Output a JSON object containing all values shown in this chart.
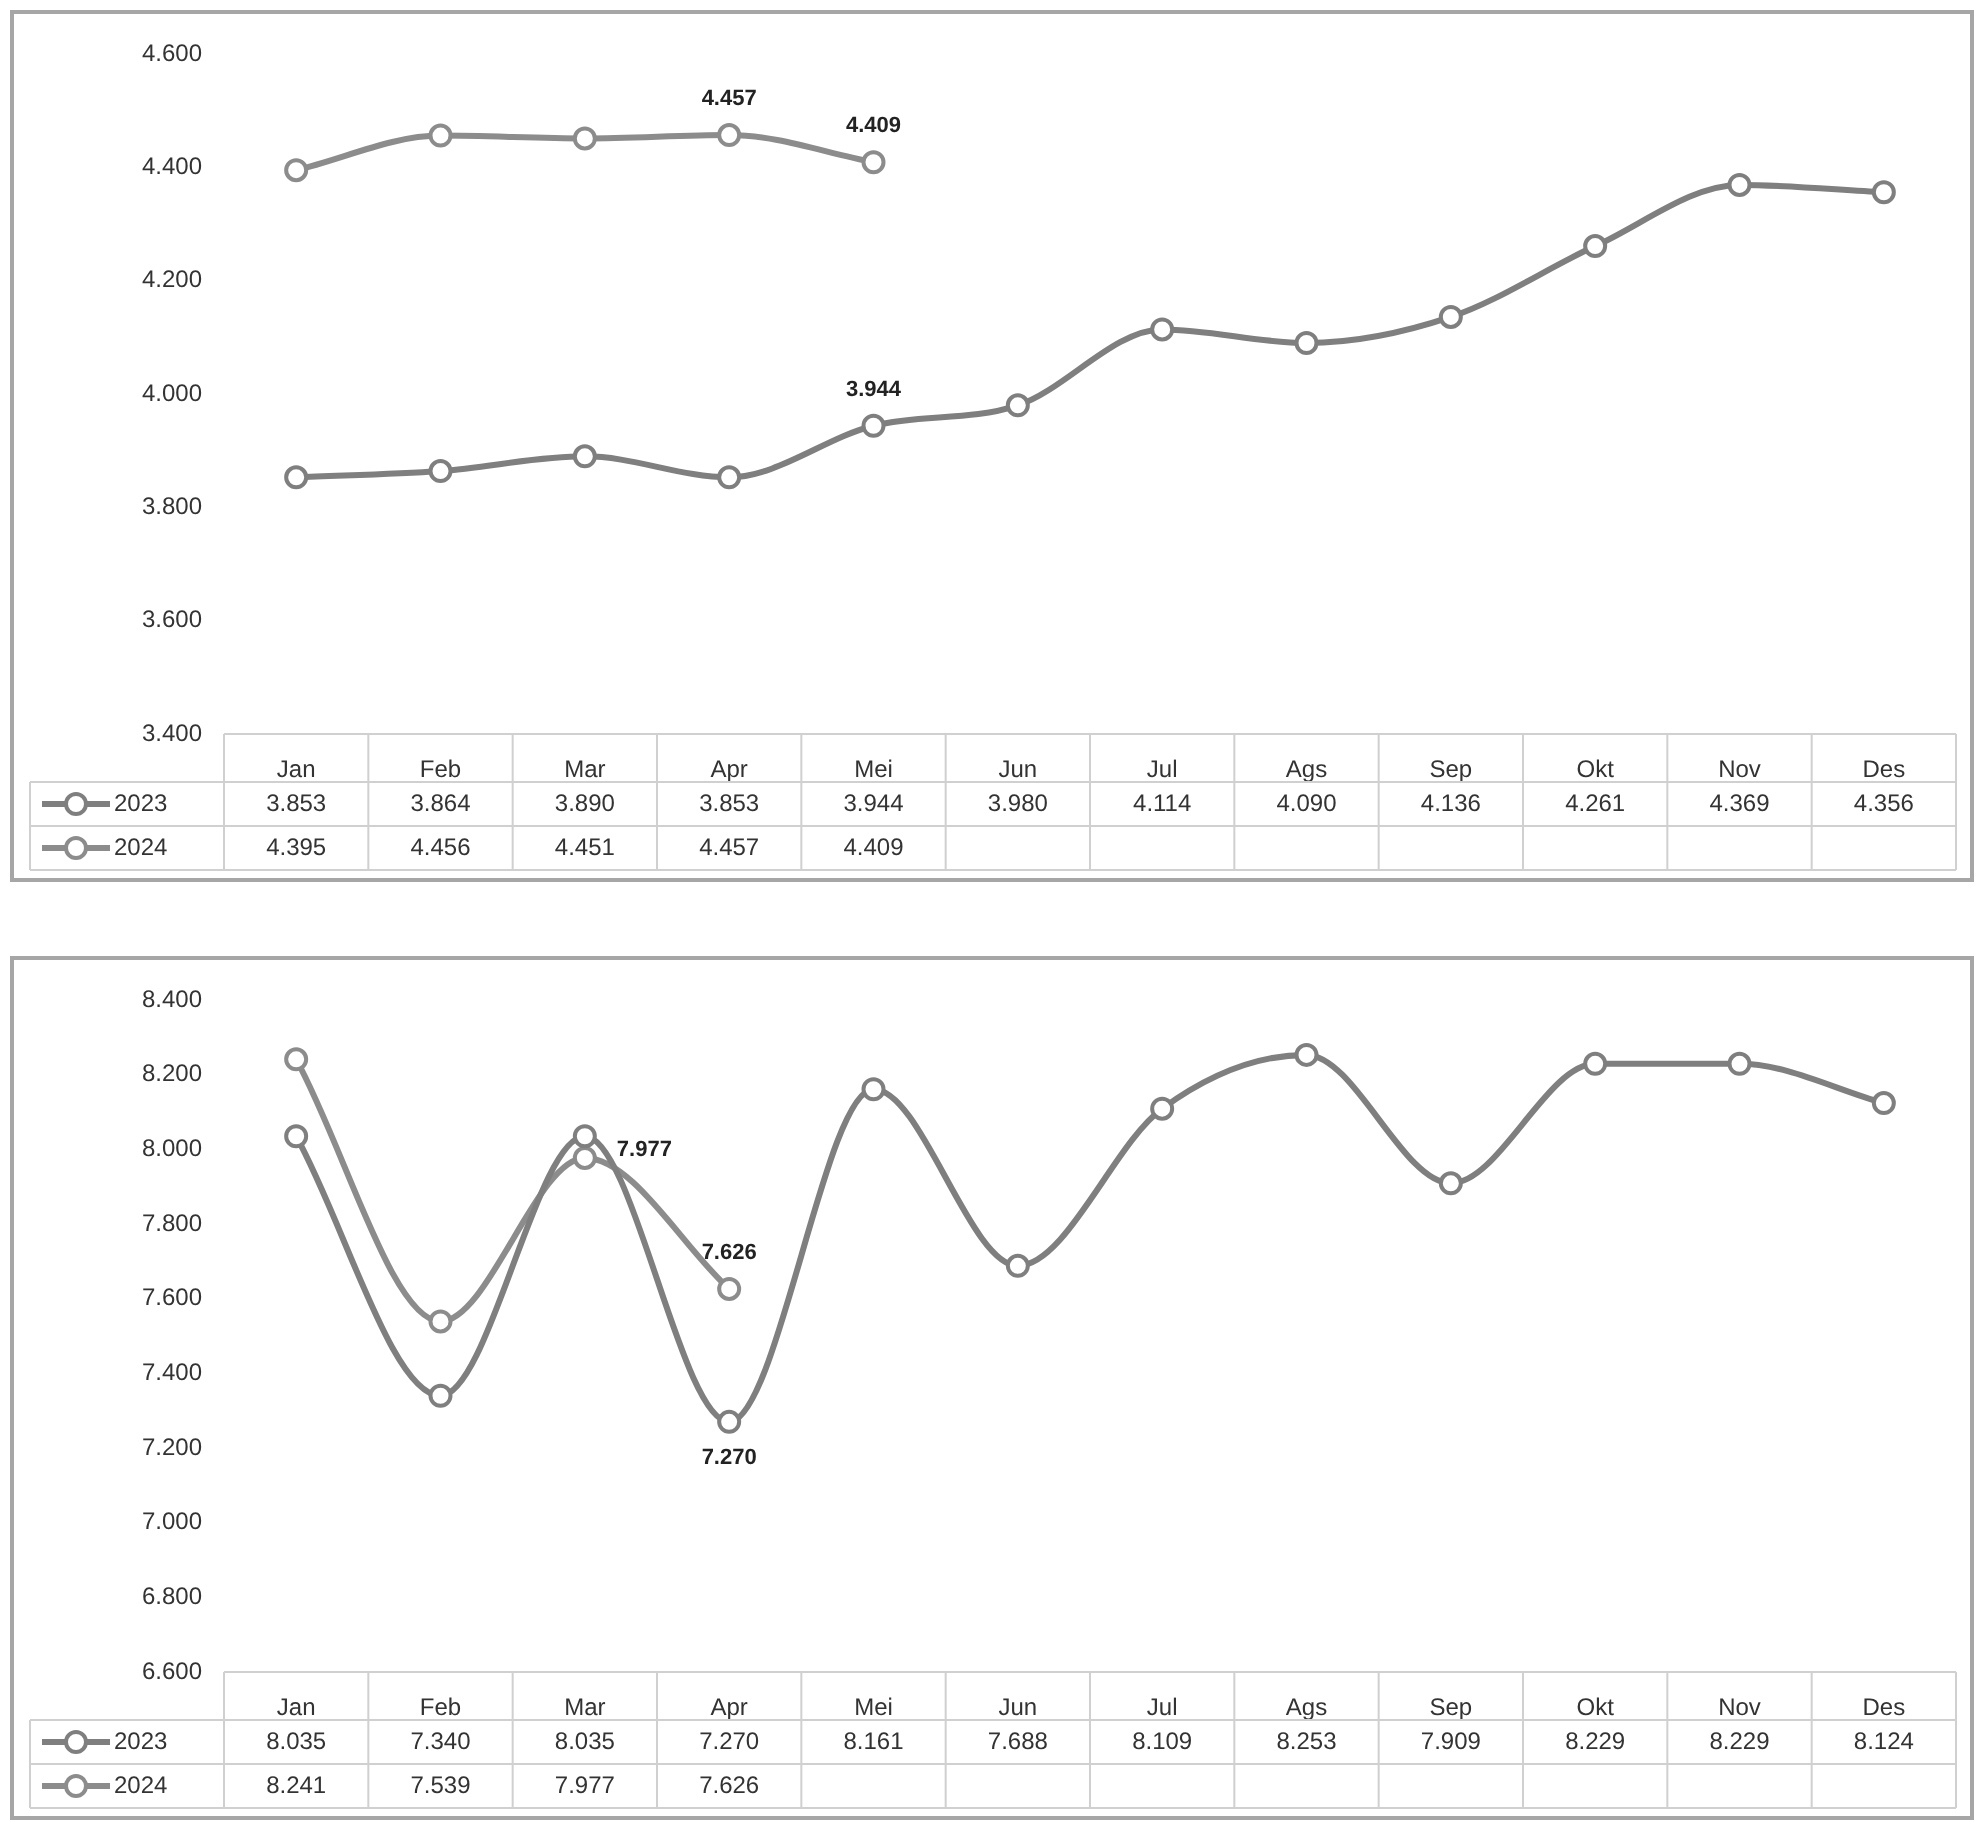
{
  "chart_data": [
    {
      "type": "line",
      "categories": [
        "Jan",
        "Feb",
        "Mar",
        "Apr",
        "Mei",
        "Jun",
        "Jul",
        "Ags",
        "Sep",
        "Okt",
        "Nov",
        "Des"
      ],
      "series": [
        {
          "name": "2023",
          "color": "#7f7f7f",
          "values": [
            3.853,
            3.864,
            3.89,
            3.853,
            3.944,
            3.98,
            4.114,
            4.09,
            4.136,
            4.261,
            4.369,
            4.356
          ],
          "value_labels": [
            "3.853",
            "3.864",
            "3.890",
            "3.853",
            "3.944",
            "3.980",
            "4.114",
            "4.090",
            "4.136",
            "4.261",
            "4.369",
            "4.356"
          ]
        },
        {
          "name": "2024",
          "color": "#8c8c8c",
          "values": [
            4.395,
            4.456,
            4.451,
            4.457,
            4.409,
            null,
            null,
            null,
            null,
            null,
            null,
            null
          ],
          "value_labels": [
            "4.395",
            "4.456",
            "4.451",
            "4.457",
            "4.409",
            null,
            null,
            null,
            null,
            null,
            null,
            null
          ]
        }
      ],
      "ylim": [
        3.4,
        4.6
      ],
      "yticks": [
        {
          "value": 3.4,
          "label": "3.400"
        },
        {
          "value": 3.6,
          "label": "3.600"
        },
        {
          "value": 3.8,
          "label": "3.800"
        },
        {
          "value": 4.0,
          "label": "4.000"
        },
        {
          "value": 4.2,
          "label": "4.200"
        },
        {
          "value": 4.4,
          "label": "4.400"
        },
        {
          "value": 4.6,
          "label": "4.600"
        }
      ],
      "annotations": [
        {
          "text": "4.457",
          "x": "Apr",
          "y": 4.457
        },
        {
          "text": "4.409",
          "x": "Mei",
          "y": 4.409
        },
        {
          "text": "3.944",
          "x": "Mei",
          "y": 3.944
        }
      ],
      "grid": false,
      "legend": "bottom",
      "marker": "circle",
      "line_style": "solid"
    },
    {
      "type": "line",
      "categories": [
        "Jan",
        "Feb",
        "Mar",
        "Apr",
        "Mei",
        "Jun",
        "Jul",
        "Ags",
        "Sep",
        "Okt",
        "Nov",
        "Des"
      ],
      "series": [
        {
          "name": "2023",
          "color": "#7f7f7f",
          "values": [
            8.035,
            7.34,
            8.035,
            7.27,
            8.161,
            7.688,
            8.109,
            8.253,
            7.909,
            8.229,
            8.229,
            8.124
          ],
          "value_labels": [
            "8.035",
            "7.340",
            "8.035",
            "7.270",
            "8.161",
            "7.688",
            "8.109",
            "8.253",
            "7.909",
            "8.229",
            "8.229",
            "8.124"
          ]
        },
        {
          "name": "2024",
          "color": "#8c8c8c",
          "values": [
            8.241,
            7.539,
            7.977,
            7.626,
            null,
            null,
            null,
            null,
            null,
            null,
            null,
            null
          ],
          "value_labels": [
            "8.241",
            "7.539",
            "7.977",
            "7.626",
            null,
            null,
            null,
            null,
            null,
            null,
            null,
            null
          ]
        }
      ],
      "ylim": [
        6.6,
        8.4
      ],
      "yticks": [
        {
          "value": 6.6,
          "label": "6.600"
        },
        {
          "value": 6.8,
          "label": "6.800"
        },
        {
          "value": 7.0,
          "label": "7.000"
        },
        {
          "value": 7.2,
          "label": "7.200"
        },
        {
          "value": 7.4,
          "label": "7.400"
        },
        {
          "value": 7.6,
          "label": "7.600"
        },
        {
          "value": 7.8,
          "label": "7.800"
        },
        {
          "value": 8.0,
          "label": "8.000"
        },
        {
          "value": 8.2,
          "label": "8.200"
        },
        {
          "value": 8.4,
          "label": "8.400"
        }
      ],
      "annotations": [
        {
          "text": "7.977",
          "x": "Mar",
          "y": 7.977
        },
        {
          "text": "7.626",
          "x": "Apr",
          "y": 7.626
        },
        {
          "text": "7.270",
          "x": "Apr",
          "y": 7.27
        }
      ],
      "grid": false,
      "legend": "bottom",
      "marker": "circle",
      "line_style": "solid"
    }
  ]
}
